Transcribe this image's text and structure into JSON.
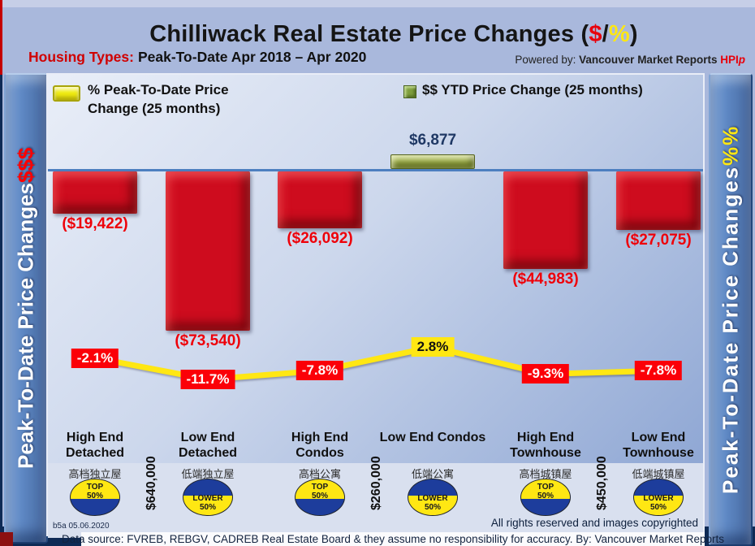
{
  "header": {
    "title_prefix": "Chilliwack Real Estate Price Changes (",
    "title_dollar": "$",
    "title_slash": "/",
    "title_percent": "%",
    "title_suffix": ")",
    "subtitle_label": "Housing Types:",
    "subtitle_text": "Peak-To-Date Apr 2018 – Apr 2020",
    "powered_prefix": "Powered by: ",
    "powered_brand": "Vancouver Market Reports",
    "powered_hpi": "HPI",
    "powered_hpi_suffix": "p"
  },
  "side_left": {
    "text": "Peak-To-Date Price Changes ",
    "accent": "$$$"
  },
  "side_right": {
    "text": "Peak-To-Date Price Changes ",
    "accent": "%%"
  },
  "legend": {
    "pct_label": "% Peak-To-Date Price Change (25 months)",
    "usd_label": "$$ YTD Price Change (25 months)"
  },
  "chart_data": {
    "type": "combo",
    "title": "Chilliwack Real Estate Price Changes ($/%)",
    "subtitle": "Housing Types: Peak-To-Date Apr 2018 – Apr 2020",
    "categories": [
      "High End Detached",
      "Low End Detached",
      "High End Condos",
      "Low End Condos",
      "High End Townhouse",
      "Low End Townhouse"
    ],
    "categories_cn": [
      "高档独立屋",
      "低端独立屋",
      "高档公寓",
      "低端公寓",
      "高档城镇屋",
      "低端城镇屋"
    ],
    "series": [
      {
        "name": "$$ YTD Price Change (25 months)",
        "type": "bar",
        "values": [
          -19422,
          -73540,
          -26092,
          6877,
          -44983,
          -27075
        ],
        "labels": [
          "($19,422)",
          "($73,540)",
          "($26,092)",
          "$6,877",
          "($44,983)",
          "($27,075)"
        ],
        "color_negative": "#ce0c1e",
        "color_positive": "#9fb148"
      },
      {
        "name": "% Peak-To-Date Price Change (25 months)",
        "type": "line",
        "values": [
          -2.1,
          -11.7,
          -7.8,
          2.8,
          -9.3,
          -7.8
        ],
        "labels": [
          "-2.1%",
          "-11.7%",
          "-7.8%",
          "2.8%",
          "-9.3%",
          "-7.8%"
        ],
        "color": "#ffe713",
        "label_bg_negative": "#fb0008",
        "label_bg_positive": "#ffe713"
      }
    ],
    "badges": [
      {
        "word": "TOP",
        "pct": "50%",
        "variant": "top"
      },
      {
        "word": "LOWER",
        "pct": "50%",
        "variant": "lower"
      },
      {
        "word": "TOP",
        "pct": "50%",
        "variant": "top"
      },
      {
        "word": "LOWER",
        "pct": "50%",
        "variant": "lower"
      },
      {
        "word": "TOP",
        "pct": "50%",
        "variant": "top"
      },
      {
        "word": "LOWER",
        "pct": "50%",
        "variant": "lower"
      }
    ],
    "benchmark_prices": [
      {
        "after_index": 0,
        "label": "$640,000"
      },
      {
        "after_index": 2,
        "label": "$260,000"
      },
      {
        "after_index": 4,
        "label": "$450,000"
      }
    ],
    "baseline": 0,
    "grid": false,
    "legend_position": "top"
  },
  "footer": {
    "stamp": "b5a 05.06.2020",
    "rights": "All rights reserved and  images copyrighted",
    "datasource": "Data source: FVREB, REBGV, CADREB Real Estate Board & they assume no responsibility for accuracy. By: Vancouver Market Reports"
  },
  "colors": {
    "page_bg": "#a9b8dc",
    "accent_red": "#e8000b",
    "accent_yellow": "#ffe713",
    "bar_red": "#ce0c1e",
    "bar_green": "#9fb148",
    "navy": "#1f3864",
    "sidebar_blue": "#5e88c4"
  }
}
